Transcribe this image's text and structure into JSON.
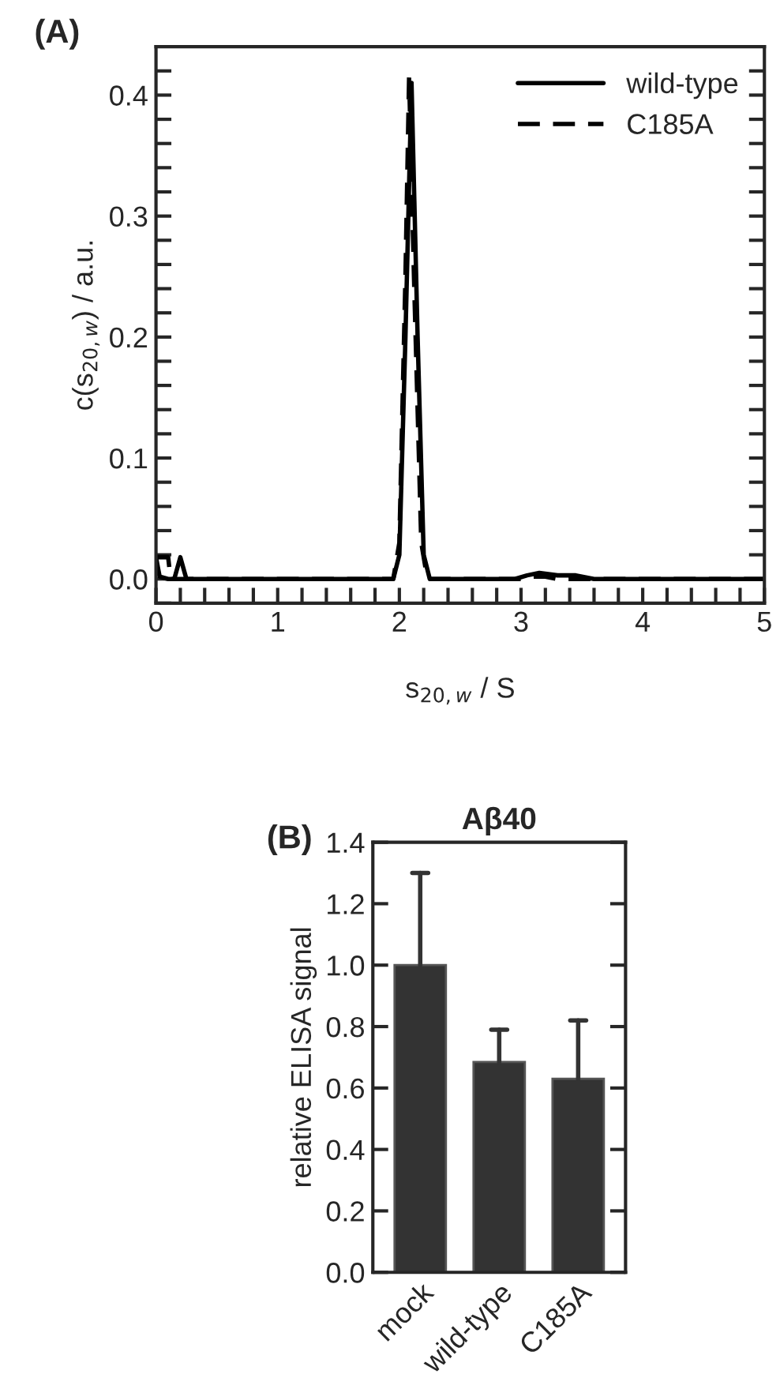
{
  "chart_data": [
    {
      "type": "line",
      "xlabel": "s$_{20,w}$ / S",
      "ylabel": "c(s$_{20,w}$) / a.u.",
      "annotations": [
        "(A)"
      ],
      "xlim": [
        0,
        5
      ],
      "ylim": [
        -0.02,
        0.44
      ],
      "xticks": [
        0,
        {
          "value": 0.2,
          "label": null
        },
        {
          "value": 0.4,
          "label": null
        },
        {
          "value": 0.6,
          "label": null
        },
        {
          "value": 0.8,
          "label": null
        },
        1,
        {
          "value": 1.2,
          "label": null
        },
        {
          "value": 1.4,
          "label": null
        },
        {
          "value": 1.6,
          "label": null
        },
        {
          "value": 1.8,
          "label": null
        },
        2,
        {
          "value": 2.2,
          "label": null
        },
        {
          "value": 2.4,
          "label": null
        },
        {
          "value": 2.6,
          "label": null
        },
        {
          "value": 2.8,
          "label": null
        },
        3,
        {
          "value": 3.2,
          "label": null
        },
        {
          "value": 3.4,
          "label": null
        },
        {
          "value": 3.6,
          "label": null
        },
        {
          "value": 3.8,
          "label": null
        },
        4,
        {
          "value": 4.2,
          "label": null
        },
        {
          "value": 4.4,
          "label": null
        },
        {
          "value": 4.6,
          "label": null
        },
        {
          "value": 4.8,
          "label": null
        },
        5
      ],
      "yticks": [
        {
          "value": -0.02,
          "label": null
        },
        {
          "value": 0.0,
          "label": "0.0"
        },
        {
          "value": 0.02,
          "label": null
        },
        {
          "value": 0.04,
          "label": null
        },
        {
          "value": 0.06,
          "label": null
        },
        {
          "value": 0.08,
          "label": null
        },
        {
          "value": 0.1,
          "label": "0.1"
        },
        {
          "value": 0.12,
          "label": null
        },
        {
          "value": 0.14,
          "label": null
        },
        {
          "value": 0.16,
          "label": null
        },
        {
          "value": 0.18,
          "label": null
        },
        {
          "value": 0.2,
          "label": "0.2"
        },
        {
          "value": 0.22,
          "label": null
        },
        {
          "value": 0.24,
          "label": null
        },
        {
          "value": 0.26,
          "label": null
        },
        {
          "value": 0.28,
          "label": null
        },
        {
          "value": 0.3,
          "label": "0.3"
        },
        {
          "value": 0.32,
          "label": null
        },
        {
          "value": 0.34,
          "label": null
        },
        {
          "value": 0.36,
          "label": null
        },
        {
          "value": 0.38,
          "label": null
        },
        {
          "value": 0.4,
          "label": "0.4"
        },
        {
          "value": 0.42,
          "label": null
        }
      ],
      "grid": false,
      "legend": "top right",
      "series": [
        {
          "name": "wild-type",
          "color": "#000000",
          "line_style": "solid",
          "x": [
            0,
            0.03,
            0.1,
            0.15,
            0.2,
            0.25,
            1.95,
            2.0,
            2.05,
            2.1,
            2.15,
            2.2,
            2.25,
            2.95,
            3.05,
            3.15,
            3.3,
            3.45,
            3.6,
            5
          ],
          "values": [
            0.018,
            0.002,
            0.0,
            0.0,
            0.018,
            0.0,
            0.0,
            0.02,
            0.2,
            0.41,
            0.2,
            0.02,
            0.0,
            0.0,
            0.003,
            0.005,
            0.003,
            0.003,
            0.0,
            0.0
          ]
        },
        {
          "name": "C185A",
          "color": "#000000",
          "line_style": "dashed",
          "x": [
            0,
            0.1,
            0.12,
            1.95,
            2.0,
            2.05,
            2.08,
            2.12,
            2.18,
            2.23,
            3.0,
            3.1,
            3.2,
            3.3,
            5
          ],
          "values": [
            0.018,
            0.018,
            0.0,
            0.0,
            0.03,
            0.25,
            0.415,
            0.25,
            0.03,
            0.0,
            0.0,
            0.002,
            0.002,
            0.0,
            0.0
          ]
        }
      ]
    },
    {
      "type": "bar",
      "title": "Aβ40",
      "ylabel": "relative ELISA signal",
      "annotations": [
        "(B)"
      ],
      "categories": [
        "mock",
        "wild-type",
        "C185A"
      ],
      "values": [
        1.0,
        0.685,
        0.63
      ],
      "color": "#333333",
      "errors": [
        [
          1.0,
          1.3
        ],
        [
          0.685,
          0.79
        ],
        [
          0.63,
          0.82
        ]
      ],
      "ylim": [
        0,
        1.4
      ],
      "yticks": [
        {
          "value": 0.0,
          "label": "0.0"
        },
        {
          "value": 0.2,
          "label": "0.2"
        },
        {
          "value": 0.4,
          "label": "0.4"
        },
        {
          "value": 0.6,
          "label": "0.6"
        },
        {
          "value": 0.8,
          "label": "0.8"
        },
        {
          "value": 1.0,
          "label": "1.0"
        },
        {
          "value": 1.2,
          "label": "1.2"
        },
        {
          "value": 1.4,
          "label": "1.4"
        }
      ],
      "grid": false
    }
  ]
}
